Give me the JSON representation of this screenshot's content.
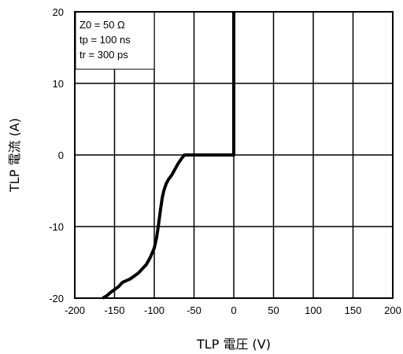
{
  "chart_data": {
    "type": "line",
    "title": "",
    "xlabel": "TLP 電圧 (V)",
    "ylabel": "TLP 電流 (A)",
    "xlim": [
      -200,
      200
    ],
    "ylim": [
      -20,
      20
    ],
    "x_ticks": [
      -200,
      -150,
      -100,
      -50,
      0,
      50,
      100,
      150,
      200
    ],
    "y_ticks": [
      -20,
      -10,
      0,
      10,
      20
    ],
    "grid": true,
    "legend": "none",
    "annotations": [
      "Z0 = 50 Ω",
      "tp = 100 ns",
      "tr = 300 ps"
    ],
    "series": [
      {
        "color": "#000000",
        "x": [
          -165,
          -160,
          -155,
          -150,
          -145,
          -140,
          -130,
          -120,
          -110,
          -105,
          -100,
          -97,
          -95,
          -92,
          -90,
          -88,
          -85,
          -82,
          -78,
          -75,
          -70,
          -65,
          -62,
          -60,
          -50,
          -30,
          -10,
          0,
          0,
          0
        ],
        "y": [
          -20,
          -19.7,
          -19.2,
          -18.8,
          -18.4,
          -17.8,
          -17.3,
          -16.5,
          -15.3,
          -14.3,
          -13,
          -11.5,
          -10,
          -7.5,
          -6,
          -5,
          -4,
          -3.4,
          -2.8,
          -2.2,
          -1.2,
          -0.4,
          0,
          0,
          0,
          0,
          0,
          0,
          10,
          20
        ]
      }
    ]
  }
}
